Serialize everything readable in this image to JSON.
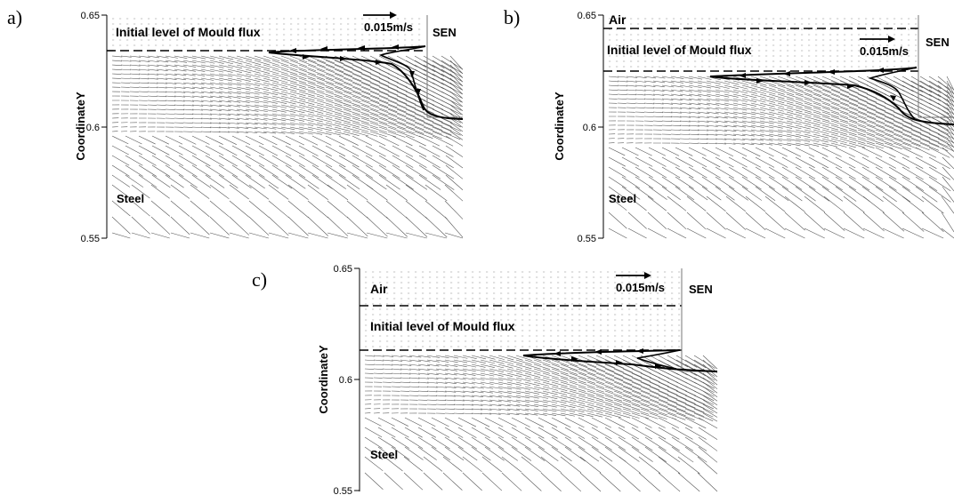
{
  "chart_data": [
    {
      "type": "vector-field",
      "panel": "a)",
      "ylabel": "CoordinateY",
      "yticks": [
        "0.65",
        "0.6",
        "0.55"
      ],
      "ylim": [
        0.55,
        0.65
      ],
      "labels": {
        "flux": "Initial level of Mould flux",
        "steel": "Steel",
        "sen": "SEN",
        "scale": "0.015m/s"
      },
      "interface_y": 0.634,
      "interface_profile": [
        [
          0.4,
          0.633
        ],
        [
          0.48,
          0.637
        ],
        [
          0.62,
          0.636
        ],
        [
          0.72,
          0.625
        ],
        [
          0.78,
          0.612
        ],
        [
          0.82,
          0.603
        ],
        [
          0.87,
          0.602
        ]
      ]
    },
    {
      "type": "vector-field",
      "panel": "b)",
      "ylabel": "CoordinateY",
      "yticks": [
        "0.65",
        "0.6",
        "0.55"
      ],
      "ylim": [
        0.55,
        0.65
      ],
      "labels": {
        "air": "Air",
        "flux": "Initial level of Mould flux",
        "steel": "Steel",
        "sen": "SEN",
        "scale": "0.015m/s"
      },
      "upper_interface_y": 0.644,
      "interface_y": 0.624,
      "interface_profile": [
        [
          0.27,
          0.622
        ],
        [
          0.4,
          0.624
        ],
        [
          0.55,
          0.622
        ],
        [
          0.64,
          0.619
        ],
        [
          0.74,
          0.612
        ],
        [
          0.8,
          0.604
        ],
        [
          0.87,
          0.601
        ]
      ]
    },
    {
      "type": "vector-field",
      "panel": "c)",
      "ylabel": "CoordinateY",
      "yticks": [
        "0.65",
        "0.6",
        "0.55"
      ],
      "ylim": [
        0.55,
        0.65
      ],
      "labels": {
        "air": "Air",
        "flux": "Initial level of Mould flux",
        "steel": "Steel",
        "sen": "SEN",
        "scale": "0.015m/s"
      },
      "upper_interface_y": 0.635,
      "interface_y": 0.614,
      "interface_profile": [
        [
          0.54,
          0.612
        ],
        [
          0.62,
          0.614
        ],
        [
          0.75,
          0.611
        ],
        [
          0.84,
          0.607
        ],
        [
          0.9,
          0.605
        ]
      ]
    }
  ]
}
